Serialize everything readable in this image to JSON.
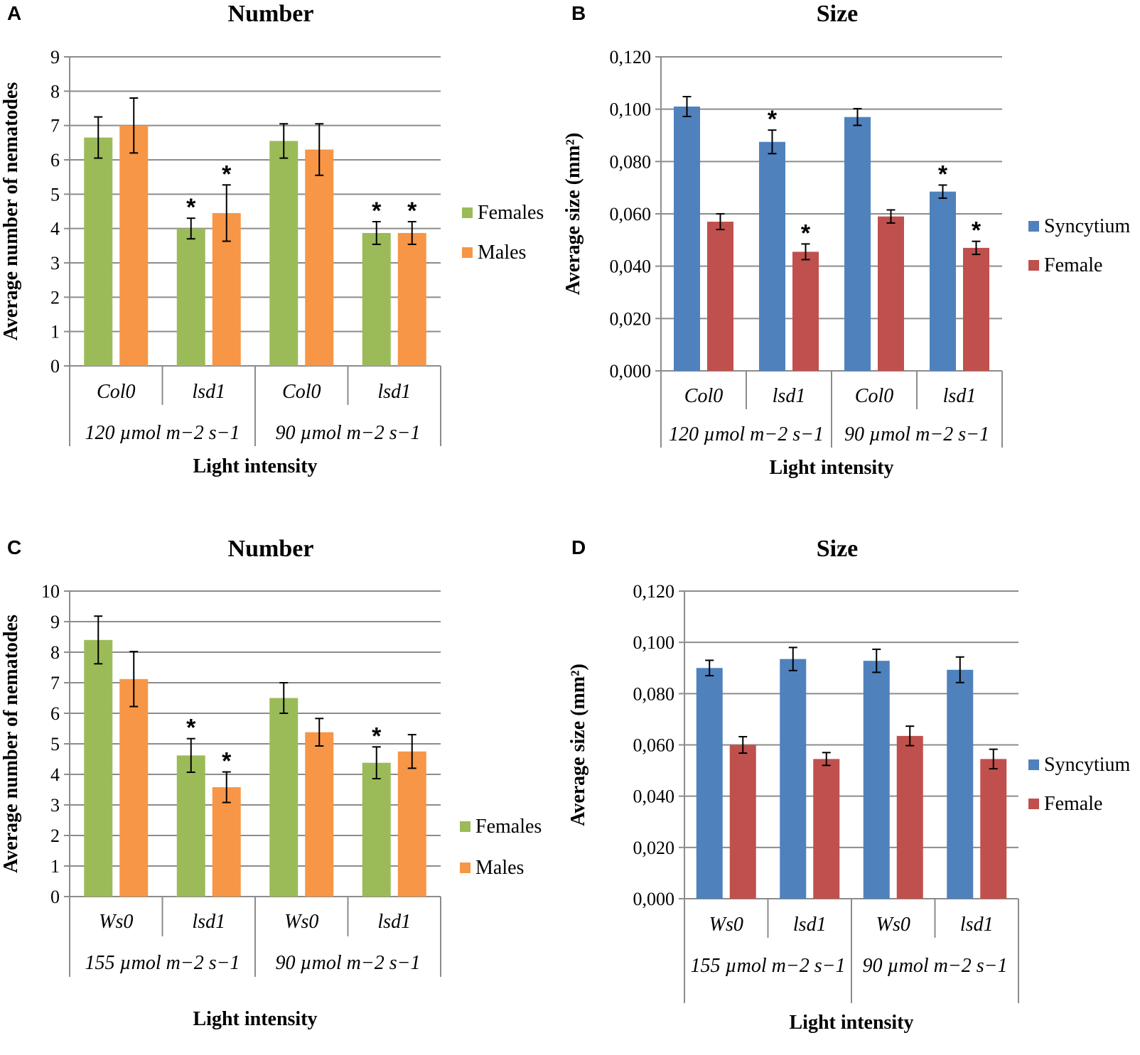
{
  "chart_data": [
    {
      "panel": "A",
      "type": "bar",
      "title": "Number",
      "xlabel": "Light intensity",
      "ylabel": "Average number of nematodes",
      "ylim": [
        0,
        9
      ],
      "yticks": [
        "0",
        "1",
        "2",
        "3",
        "4",
        "5",
        "6",
        "7",
        "8",
        "9"
      ],
      "categories": [
        "Col0",
        "lsd1",
        "Col0",
        "lsd1"
      ],
      "groups": [
        "120 µmol m−2 s−1",
        "90 µmol m−2 s−1"
      ],
      "series": [
        {
          "name": "Females",
          "color": "#9bbb59",
          "values": [
            6.65,
            4.0,
            6.55,
            3.87
          ],
          "errors": [
            0.6,
            0.3,
            0.5,
            0.33
          ],
          "significant": [
            false,
            true,
            false,
            true
          ]
        },
        {
          "name": "Males",
          "color": "#f79646",
          "values": [
            7.0,
            4.45,
            6.3,
            3.87
          ],
          "errors": [
            0.8,
            0.82,
            0.75,
            0.33
          ],
          "significant": [
            false,
            true,
            false,
            true
          ]
        }
      ],
      "significance_marker": "*",
      "legend": "right"
    },
    {
      "panel": "B",
      "type": "bar",
      "title": "Size",
      "xlabel": "Light intensity",
      "ylabel": "Average  size (mm²)",
      "ylim": [
        0,
        0.12
      ],
      "yticks": [
        "0,000",
        "0,020",
        "0,040",
        "0,060",
        "0,080",
        "0,100",
        "0,120"
      ],
      "categories": [
        "Col0",
        "lsd1",
        "Col0",
        "lsd1"
      ],
      "groups": [
        "120 µmol m−2 s−1",
        "90 µmol m−2 s−1"
      ],
      "series": [
        {
          "name": "Syncytium",
          "color": "#4f81bd",
          "values": [
            0.101,
            0.0875,
            0.097,
            0.0685
          ],
          "errors": [
            0.0038,
            0.0045,
            0.0032,
            0.0025
          ],
          "significant": [
            false,
            true,
            false,
            true
          ]
        },
        {
          "name": "Female",
          "color": "#c0504d",
          "values": [
            0.057,
            0.0455,
            0.059,
            0.047
          ],
          "errors": [
            0.003,
            0.003,
            0.0025,
            0.0025
          ],
          "significant": [
            false,
            true,
            false,
            true
          ]
        }
      ],
      "significance_marker": "*",
      "legend": "right"
    },
    {
      "panel": "C",
      "type": "bar",
      "title": "Number",
      "xlabel": "Light intensity",
      "ylabel": "Average number of nematodes",
      "ylim": [
        0,
        10
      ],
      "yticks": [
        "0",
        "1",
        "2",
        "3",
        "4",
        "5",
        "6",
        "7",
        "8",
        "9",
        "10"
      ],
      "categories": [
        "Ws0",
        "lsd1",
        "Ws0",
        "lsd1"
      ],
      "groups": [
        "155 µmol m−2 s−1",
        "90 µmol m−2 s−1"
      ],
      "series": [
        {
          "name": "Females",
          "color": "#9bbb59",
          "values": [
            8.4,
            4.62,
            6.5,
            4.38
          ],
          "errors": [
            0.78,
            0.55,
            0.5,
            0.52
          ],
          "significant": [
            false,
            true,
            false,
            true
          ]
        },
        {
          "name": "Males",
          "color": "#f79646",
          "values": [
            7.12,
            3.58,
            5.38,
            4.75
          ],
          "errors": [
            0.9,
            0.5,
            0.45,
            0.55
          ],
          "significant": [
            false,
            true,
            false,
            false
          ]
        }
      ],
      "significance_marker": "*",
      "legend": "right"
    },
    {
      "panel": "D",
      "type": "bar",
      "title": "Size",
      "xlabel": "Light intensity",
      "ylabel": "Average  size (mm²)",
      "ylim": [
        0,
        0.12
      ],
      "yticks": [
        "0,000",
        "0,020",
        "0,040",
        "0,060",
        "0,080",
        "0,100",
        "0,120"
      ],
      "categories": [
        "Ws0",
        "lsd1",
        "Ws0",
        "lsd1"
      ],
      "groups": [
        "155 µmol m−2 s−1",
        "90 µmol m−2 s−1"
      ],
      "series": [
        {
          "name": "Syncytium",
          "color": "#4f81bd",
          "values": [
            0.09,
            0.0935,
            0.0928,
            0.0893
          ],
          "errors": [
            0.003,
            0.0045,
            0.0045,
            0.005
          ],
          "significant": [
            false,
            false,
            false,
            false
          ]
        },
        {
          "name": "Female",
          "color": "#c0504d",
          "values": [
            0.06,
            0.0545,
            0.0635,
            0.0545
          ],
          "errors": [
            0.0032,
            0.0025,
            0.0038,
            0.0038
          ],
          "significant": [
            false,
            false,
            false,
            false
          ]
        }
      ],
      "significance_marker": "*",
      "legend": "right"
    }
  ]
}
